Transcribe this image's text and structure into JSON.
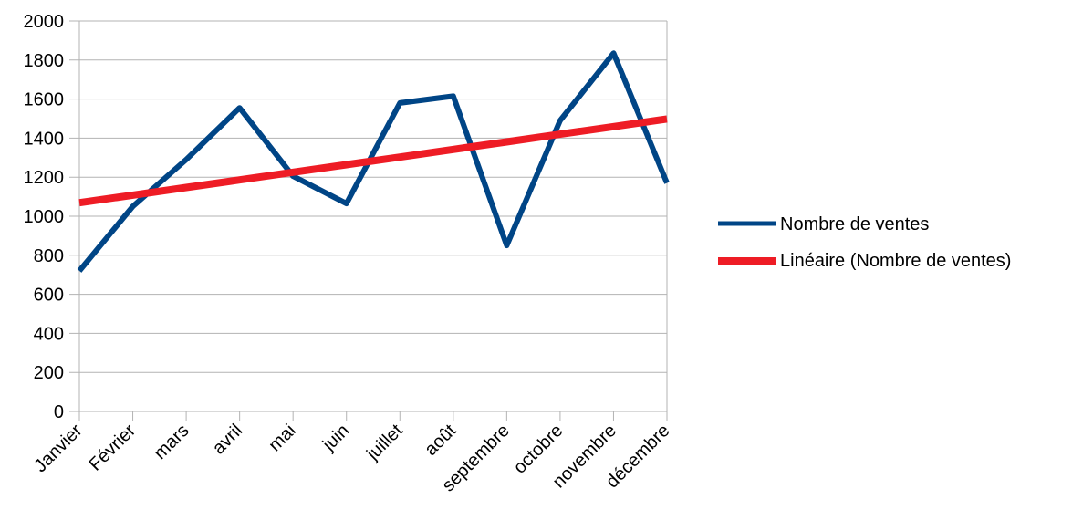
{
  "chart_data": {
    "type": "line",
    "title": "",
    "xlabel": "",
    "ylabel": "",
    "categories": [
      "Janvier",
      "Février",
      "mars",
      "avril",
      "mai",
      "juin",
      "juillet",
      "août",
      "septembre",
      "octobre",
      "novembre",
      "décembre"
    ],
    "ylim": [
      0,
      2000
    ],
    "yticks": [
      0,
      200,
      400,
      600,
      800,
      1000,
      1200,
      1400,
      1600,
      1800,
      2000
    ],
    "grid": true,
    "legend_position": "right",
    "series": [
      {
        "name": "Nombre de ventes",
        "color": "#004586",
        "values": [
          720,
          1050,
          1290,
          1555,
          1205,
          1065,
          1580,
          1615,
          850,
          1490,
          1835,
          1170
        ]
      },
      {
        "name": "Linéaire (Nombre de ventes)",
        "color": "#ee1c25",
        "trendline": "linear",
        "values": [
          1069,
          1108,
          1147,
          1186,
          1225,
          1264,
          1303,
          1342,
          1381,
          1420,
          1459,
          1498
        ]
      }
    ]
  }
}
